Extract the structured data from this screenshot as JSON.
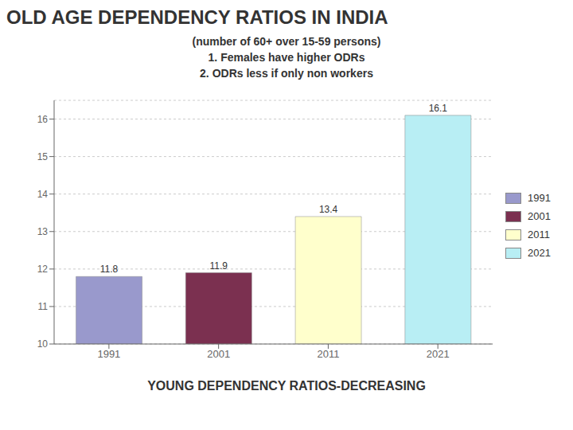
{
  "chart_data": {
    "type": "bar",
    "title": "OLD AGE DEPENDENCY RATIOS IN INDIA",
    "subtitle": [
      "(number of 60+ over 15-59 persons)",
      "1. Females have higher ODRs",
      "2. ODRs less if only non workers"
    ],
    "annotations": [
      "YOUNG DEPENDENCY RATIOS-DECREASING"
    ],
    "categories": [
      "1991",
      "2001",
      "2011",
      "2021"
    ],
    "values": [
      11.8,
      11.9,
      13.4,
      16.1
    ],
    "colors": [
      "#9999cc",
      "#7b3050",
      "#ffffcc",
      "#b8eef4"
    ],
    "ylim": [
      10,
      16.5
    ],
    "yticks": [
      10,
      11,
      12,
      13,
      14,
      15,
      16
    ],
    "grid": true,
    "legend": "right",
    "data_labels": true
  }
}
